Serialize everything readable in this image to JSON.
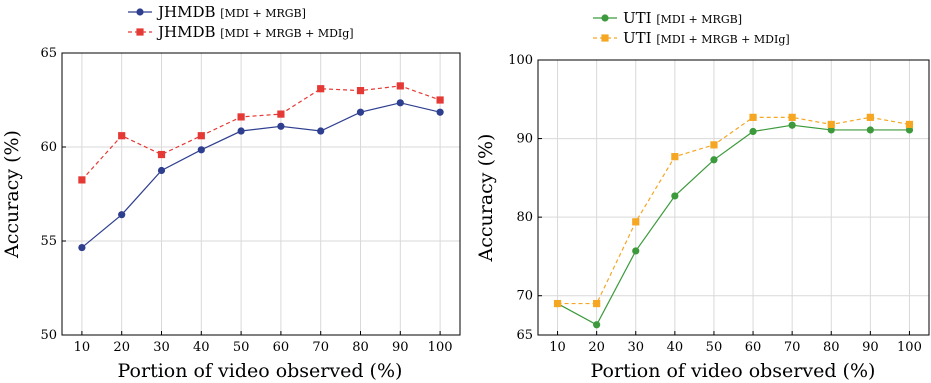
{
  "chart_data": [
    {
      "type": "line",
      "xlabel": "Portion of video observed (%)",
      "ylabel": "Accuracy (%)",
      "x": [
        10,
        20,
        30,
        40,
        50,
        60,
        70,
        80,
        90,
        100
      ],
      "xlim": [
        5,
        105
      ],
      "ylim": [
        50,
        65
      ],
      "yticks": [
        50,
        55,
        60,
        65
      ],
      "grid": true,
      "legend_position": "top",
      "series": [
        {
          "name_main": "JHMDB",
          "name_sub": "[MDI + MRGB]",
          "color": "#2e3f8f",
          "marker": "circle",
          "dash": "solid",
          "values": [
            54.65,
            56.4,
            58.75,
            59.85,
            60.85,
            61.1,
            60.85,
            61.85,
            62.35,
            61.85
          ]
        },
        {
          "name_main": "JHMDB",
          "name_sub": "[MDI + MRGB + MDIg]",
          "color": "#e53935",
          "marker": "square",
          "dash": "dashed",
          "values": [
            58.25,
            60.6,
            59.6,
            60.6,
            61.6,
            61.75,
            63.1,
            63.0,
            63.25,
            62.5
          ]
        }
      ]
    },
    {
      "type": "line",
      "xlabel": "Portion of video observed (%)",
      "ylabel": "Accuracy (%)",
      "x": [
        10,
        20,
        30,
        40,
        50,
        60,
        70,
        80,
        90,
        100
      ],
      "xlim": [
        5,
        105
      ],
      "ylim": [
        65,
        100
      ],
      "yticks": [
        65,
        70,
        80,
        90,
        100
      ],
      "grid": true,
      "legend_position": "top",
      "series": [
        {
          "name_main": "UTI",
          "name_sub": "[MDI + MRGB]",
          "color": "#3c9a3c",
          "marker": "circle",
          "dash": "solid",
          "values": [
            69.0,
            66.3,
            75.7,
            82.7,
            87.3,
            90.9,
            91.7,
            91.1,
            91.1,
            91.1
          ]
        },
        {
          "name_main": "UTI",
          "name_sub": "[MDI + MRGB + MDIg]",
          "color": "#f5a623",
          "marker": "square",
          "dash": "dashed",
          "values": [
            69.0,
            69.0,
            79.4,
            87.7,
            89.2,
            92.7,
            92.7,
            91.8,
            92.7,
            91.8
          ]
        }
      ]
    }
  ]
}
